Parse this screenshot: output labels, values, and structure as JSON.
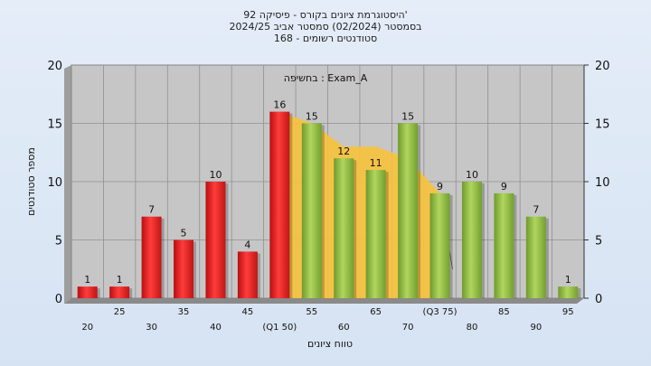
{
  "chart_data": {
    "type": "bar",
    "title_lines": [
      "היסטוגרמת ציונים בקורס - פיסיקה 92'",
      "בסמסטר  (02/2024)  סמסטר אביב 2024/25",
      "סטודנטים רשומים - 168"
    ],
    "annotation": "בחשיפה : Exam_A",
    "xlabel": "טווח ציונים",
    "ylabel": "מספר סטודנטים",
    "ylim": [
      0,
      20
    ],
    "yticks": [
      0,
      5,
      10,
      15,
      20
    ],
    "grid": true,
    "categories": [
      "20",
      "25",
      "30",
      "35",
      "40",
      "45",
      "(Q1 50)",
      "55",
      "60",
      "65",
      "70",
      "(Q3 75)",
      "80",
      "85",
      "90",
      "95"
    ],
    "values": [
      1,
      1,
      7,
      5,
      10,
      4,
      16,
      15,
      12,
      11,
      15,
      9,
      10,
      9,
      7,
      1
    ],
    "bar_groups": [
      "red",
      "red",
      "red",
      "red",
      "red",
      "red",
      "red",
      "green",
      "green",
      "green",
      "green",
      "green",
      "green",
      "green",
      "green",
      "green"
    ],
    "iqr_band": {
      "upper": [
        16,
        15,
        13,
        13,
        12,
        9
      ],
      "lower": [
        0,
        0,
        0,
        0,
        0,
        0
      ],
      "start_index": 6,
      "end_index": 11
    },
    "colors": {
      "red": "#e02020",
      "green": "#8fba40",
      "band": "#f6c23e",
      "plot_bg": "#c6c6c6"
    }
  }
}
